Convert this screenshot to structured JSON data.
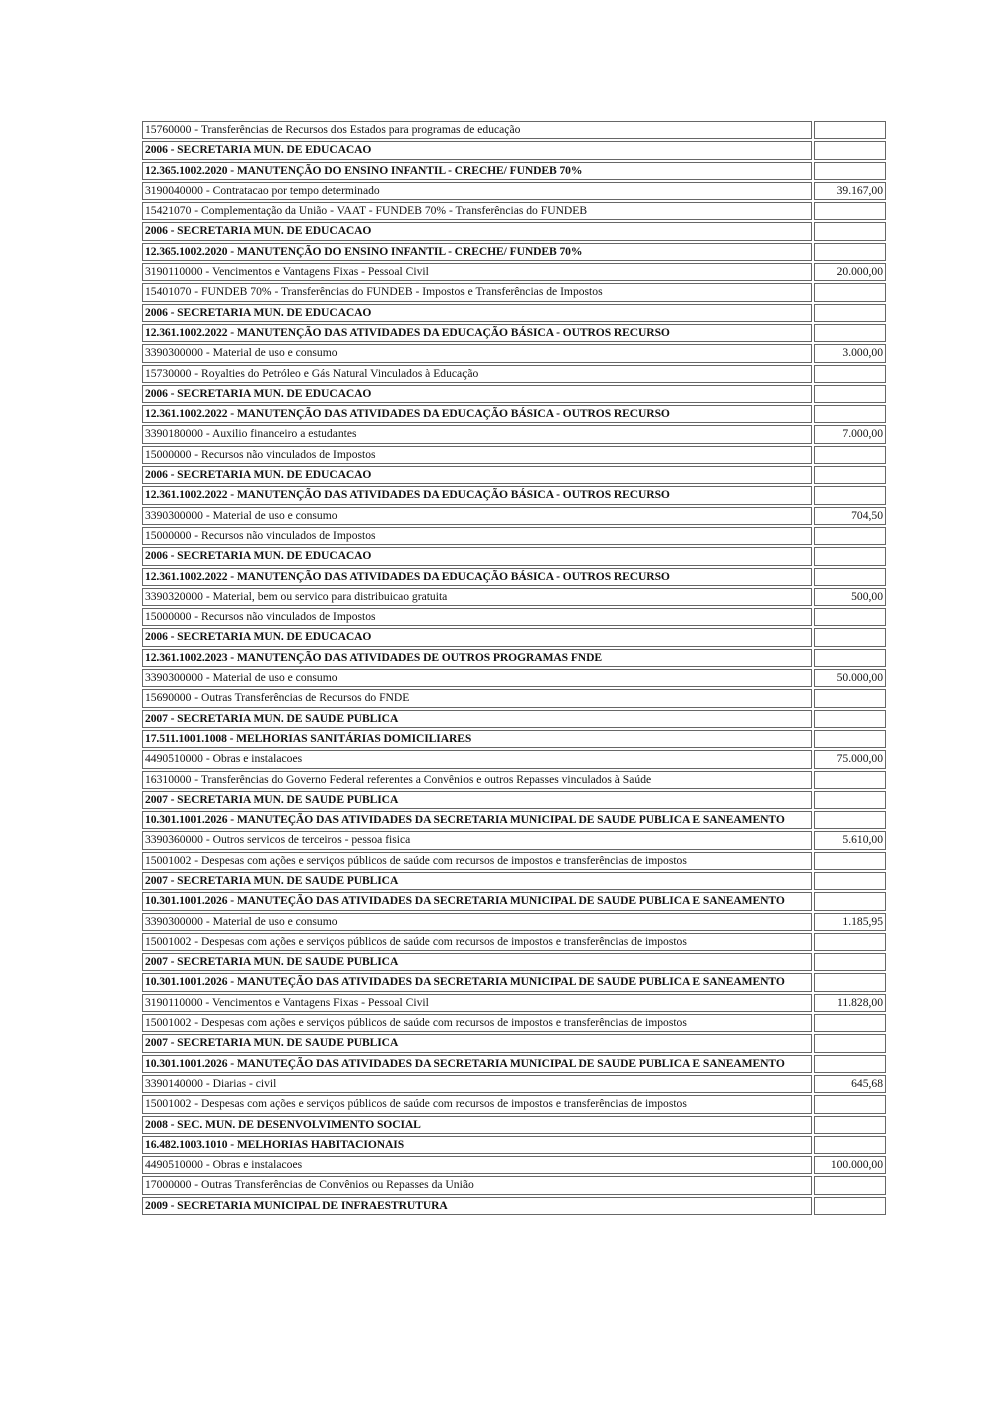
{
  "rows": [
    {
      "text": "15760000 - Transferências de Recursos dos Estados para programas de educação",
      "value": "",
      "bold": false
    },
    {
      "text": "2006 - SECRETARIA MUN. DE EDUCACAO",
      "value": "",
      "bold": true
    },
    {
      "text": "12.365.1002.2020 - MANUTENÇÃO DO ENSINO INFANTIL - CRECHE/ FUNDEB 70%",
      "value": "",
      "bold": true
    },
    {
      "text": "3190040000 - Contratacao por tempo determinado",
      "value": "39.167,00",
      "bold": false
    },
    {
      "text": "15421070 - Complementação da União - VAAT - FUNDEB 70% - Transferências do FUNDEB",
      "value": "",
      "bold": false
    },
    {
      "text": "2006 - SECRETARIA MUN. DE EDUCACAO",
      "value": "",
      "bold": true
    },
    {
      "text": "12.365.1002.2020 - MANUTENÇÃO DO ENSINO INFANTIL - CRECHE/ FUNDEB 70%",
      "value": "",
      "bold": true
    },
    {
      "text": "3190110000 - Vencimentos e Vantagens Fixas - Pessoal Civil",
      "value": "20.000,00",
      "bold": false
    },
    {
      "text": "15401070 - FUNDEB 70% - Transferências do FUNDEB - Impostos e Transferências de Impostos",
      "value": "",
      "bold": false
    },
    {
      "text": "2006 - SECRETARIA MUN. DE EDUCACAO",
      "value": "",
      "bold": true
    },
    {
      "text": "12.361.1002.2022 - MANUTENÇÃO DAS ATIVIDADES DA EDUCAÇÃO BÁSICA - OUTROS RECURSO",
      "value": "",
      "bold": true
    },
    {
      "text": "3390300000 - Material de uso e consumo",
      "value": "3.000,00",
      "bold": false
    },
    {
      "text": "15730000 - Royalties do Petróleo e Gás Natural Vinculados à Educação",
      "value": "",
      "bold": false
    },
    {
      "text": "2006 - SECRETARIA MUN. DE EDUCACAO",
      "value": "",
      "bold": true
    },
    {
      "text": "12.361.1002.2022 - MANUTENÇÃO DAS ATIVIDADES DA EDUCAÇÃO BÁSICA - OUTROS RECURSO",
      "value": "",
      "bold": true
    },
    {
      "text": "3390180000 - Auxilio financeiro a estudantes",
      "value": "7.000,00",
      "bold": false
    },
    {
      "text": "15000000 - Recursos não vinculados de Impostos",
      "value": "",
      "bold": false
    },
    {
      "text": "2006 - SECRETARIA MUN. DE EDUCACAO",
      "value": "",
      "bold": true
    },
    {
      "text": "12.361.1002.2022 - MANUTENÇÃO DAS ATIVIDADES DA EDUCAÇÃO BÁSICA - OUTROS RECURSO",
      "value": "",
      "bold": true
    },
    {
      "text": "3390300000 - Material de uso e consumo",
      "value": "704,50",
      "bold": false
    },
    {
      "text": "15000000 - Recursos não vinculados de Impostos",
      "value": "",
      "bold": false
    },
    {
      "text": "2006 - SECRETARIA MUN. DE EDUCACAO",
      "value": "",
      "bold": true
    },
    {
      "text": "12.361.1002.2022 - MANUTENÇÃO DAS ATIVIDADES DA EDUCAÇÃO BÁSICA - OUTROS RECURSO",
      "value": "",
      "bold": true
    },
    {
      "text": "3390320000 - Material, bem ou servico para distribuicao gratuita",
      "value": "500,00",
      "bold": false
    },
    {
      "text": "15000000 - Recursos não vinculados de Impostos",
      "value": "",
      "bold": false
    },
    {
      "text": "2006 - SECRETARIA MUN. DE EDUCACAO",
      "value": "",
      "bold": true
    },
    {
      "text": "12.361.1002.2023 - MANUTENÇÃO DAS ATIVIDADES DE OUTROS PROGRAMAS FNDE",
      "value": "",
      "bold": true
    },
    {
      "text": "3390300000 - Material de uso e consumo",
      "value": "50.000,00",
      "bold": false
    },
    {
      "text": "15690000 - Outras Transferências de Recursos do FNDE",
      "value": "",
      "bold": false
    },
    {
      "text": "2007 - SECRETARIA MUN. DE SAUDE PUBLICA",
      "value": "",
      "bold": true
    },
    {
      "text": "17.511.1001.1008 - MELHORIAS SANITÁRIAS DOMICILIARES",
      "value": "",
      "bold": true
    },
    {
      "text": "4490510000 - Obras e instalacoes",
      "value": "75.000,00",
      "bold": false
    },
    {
      "text": "16310000 - Transferências do Governo Federal referentes a Convênios e outros Repasses vinculados à Saúde",
      "value": "",
      "bold": false
    },
    {
      "text": "2007 - SECRETARIA MUN. DE SAUDE PUBLICA",
      "value": "",
      "bold": true
    },
    {
      "text": "10.301.1001.2026 - MANUTEÇÃO DAS ATIVIDADES DA SECRETARIA MUNICIPAL DE SAUDE PUBLICA E SANEAMENTO",
      "value": "",
      "bold": true
    },
    {
      "text": "3390360000 - Outros servicos de terceiros - pessoa fisica",
      "value": "5.610,00",
      "bold": false
    },
    {
      "text": "15001002 - Despesas com ações e serviços públicos de saúde com recursos de impostos e transferências de impostos",
      "value": "",
      "bold": false
    },
    {
      "text": "2007 - SECRETARIA MUN. DE SAUDE PUBLICA",
      "value": "",
      "bold": true
    },
    {
      "text": "10.301.1001.2026 - MANUTEÇÃO DAS ATIVIDADES DA SECRETARIA MUNICIPAL DE SAUDE PUBLICA E SANEAMENTO",
      "value": "",
      "bold": true
    },
    {
      "text": "3390300000 - Material de uso e consumo",
      "value": "1.185,95",
      "bold": false
    },
    {
      "text": "15001002 - Despesas com ações e serviços públicos de saúde com recursos de impostos e transferências de impostos",
      "value": "",
      "bold": false
    },
    {
      "text": "2007 - SECRETARIA MUN. DE SAUDE PUBLICA",
      "value": "",
      "bold": true
    },
    {
      "text": "10.301.1001.2026 - MANUTEÇÃO DAS ATIVIDADES DA SECRETARIA MUNICIPAL DE SAUDE PUBLICA E SANEAMENTO",
      "value": "",
      "bold": true
    },
    {
      "text": "3190110000 - Vencimentos e Vantagens Fixas - Pessoal Civil",
      "value": "11.828,00",
      "bold": false
    },
    {
      "text": "15001002 - Despesas com ações e serviços públicos de saúde com recursos de impostos e transferências de impostos",
      "value": "",
      "bold": false
    },
    {
      "text": "2007 - SECRETARIA MUN. DE SAUDE PUBLICA",
      "value": "",
      "bold": true
    },
    {
      "text": "10.301.1001.2026 - MANUTEÇÃO DAS ATIVIDADES DA SECRETARIA MUNICIPAL DE SAUDE PUBLICA E SANEAMENTO",
      "value": "",
      "bold": true
    },
    {
      "text": "3390140000 - Diarias - civil",
      "value": "645,68",
      "bold": false
    },
    {
      "text": "15001002 - Despesas com ações e serviços públicos de saúde com recursos de impostos e transferências de impostos",
      "value": "",
      "bold": false
    },
    {
      "text": "2008 - SEC. MUN. DE DESENVOLVIMENTO SOCIAL",
      "value": "",
      "bold": true
    },
    {
      "text": "16.482.1003.1010 - MELHORIAS HABITACIONAIS",
      "value": "",
      "bold": true
    },
    {
      "text": "4490510000 - Obras e instalacoes",
      "value": "100.000,00",
      "bold": false
    },
    {
      "text": "17000000 - Outras Transferências de Convênios ou Repasses da União",
      "value": "",
      "bold": false
    },
    {
      "text": "2009 - SECRETARIA MUNICIPAL DE INFRAESTRUTURA",
      "value": "",
      "bold": true
    }
  ]
}
